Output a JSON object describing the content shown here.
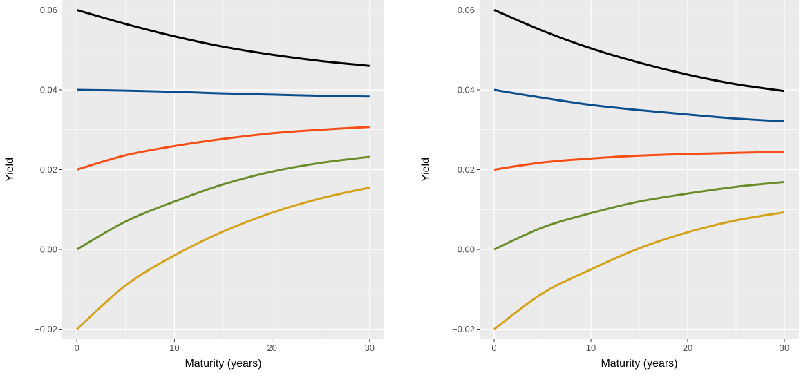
{
  "chart_data": [
    {
      "type": "line",
      "title": "",
      "xlabel": "Maturity (years)",
      "ylabel": "Yield",
      "xlim": [
        -1.5,
        31.5
      ],
      "ylim": [
        -0.0225,
        0.0625
      ],
      "x_ticks": [
        0,
        10,
        20,
        30
      ],
      "x_tick_labels": [
        "0",
        "10",
        "20",
        "30"
      ],
      "y_ticks": [
        -0.02,
        0.0,
        0.02,
        0.04,
        0.06
      ],
      "y_tick_labels": [
        "−0.02",
        "0.00",
        "0.02",
        "0.04",
        "0.06"
      ],
      "grid": true,
      "x": [
        0,
        5,
        10,
        15,
        20,
        25,
        30
      ],
      "series": [
        {
          "color": "#000000",
          "values": [
            0.06,
            0.0565,
            0.0534,
            0.0508,
            0.0488,
            0.0472,
            0.046
          ]
        },
        {
          "color": "#0b4e8c",
          "values": [
            0.04,
            0.0398,
            0.0395,
            0.0391,
            0.0388,
            0.0385,
            0.0383
          ]
        },
        {
          "color": "#f74c13",
          "values": [
            0.02,
            0.0236,
            0.0259,
            0.0277,
            0.0291,
            0.03,
            0.0307
          ]
        },
        {
          "color": "#6a8d2b",
          "values": [
            0.0,
            0.007,
            0.012,
            0.0163,
            0.0195,
            0.0217,
            0.0232
          ]
        },
        {
          "color": "#d4a219",
          "values": [
            -0.02,
            -0.009,
            -0.0015,
            0.0045,
            0.0092,
            0.0128,
            0.0155
          ]
        }
      ]
    },
    {
      "type": "line",
      "title": "",
      "xlabel": "Maturity (years)",
      "ylabel": "Yield",
      "xlim": [
        -1.5,
        31.5
      ],
      "ylim": [
        -0.0225,
        0.0625
      ],
      "x_ticks": [
        0,
        10,
        20,
        30
      ],
      "x_tick_labels": [
        "0",
        "10",
        "20",
        "30"
      ],
      "y_ticks": [
        -0.02,
        0.0,
        0.02,
        0.04,
        0.06
      ],
      "y_tick_labels": [
        "−0.02",
        "0.00",
        "0.02",
        "0.04",
        "0.06"
      ],
      "grid": true,
      "x": [
        0,
        5,
        10,
        15,
        20,
        25,
        30
      ],
      "series": [
        {
          "color": "#000000",
          "values": [
            0.06,
            0.0548,
            0.0504,
            0.0468,
            0.0438,
            0.0414,
            0.0397
          ]
        },
        {
          "color": "#0b4e8c",
          "values": [
            0.04,
            0.038,
            0.0362,
            0.0349,
            0.0338,
            0.0328,
            0.0321
          ]
        },
        {
          "color": "#f74c13",
          "values": [
            0.02,
            0.0218,
            0.0228,
            0.0235,
            0.0239,
            0.0242,
            0.0245
          ]
        },
        {
          "color": "#6a8d2b",
          "values": [
            0.0,
            0.0055,
            0.0091,
            0.012,
            0.014,
            0.0157,
            0.0169
          ]
        },
        {
          "color": "#d4a219",
          "values": [
            -0.02,
            -0.011,
            -0.005,
            0.0003,
            0.0043,
            0.0073,
            0.0093
          ]
        }
      ]
    }
  ]
}
